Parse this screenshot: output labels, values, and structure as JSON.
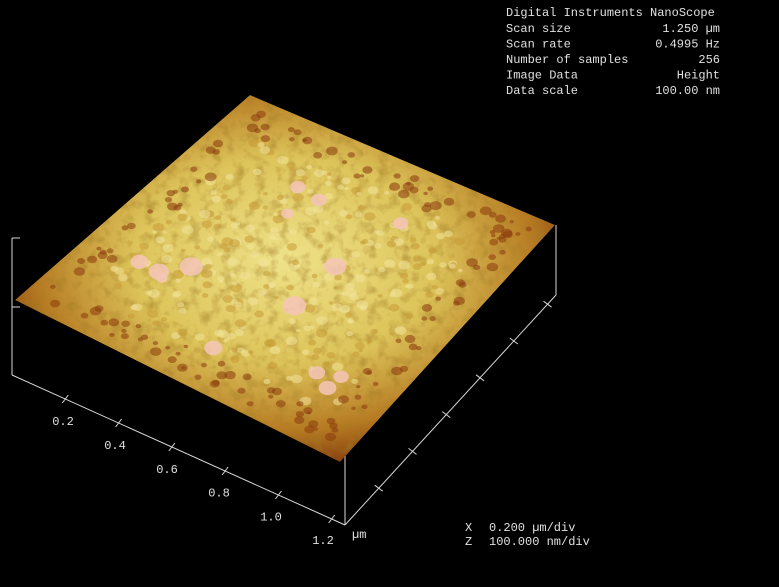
{
  "info_panel": {
    "title": "Digital Instruments NanoScope",
    "rows": [
      [
        "Scan size",
        "1.250 µm"
      ],
      [
        "Scan rate",
        "0.4995 Hz"
      ],
      [
        "Number of samples",
        "256"
      ],
      [
        "Image Data",
        "Height"
      ],
      [
        "Data scale",
        "100.00 nm"
      ]
    ]
  },
  "x_axis": {
    "tick_labels": [
      "0.2",
      "0.4",
      "0.6",
      "0.8",
      "1.0",
      "1.2"
    ],
    "unit": "µm"
  },
  "legend": [
    [
      "X",
      "0.200 µm/div"
    ],
    [
      "Z",
      "100.000 nm/div"
    ]
  ]
}
